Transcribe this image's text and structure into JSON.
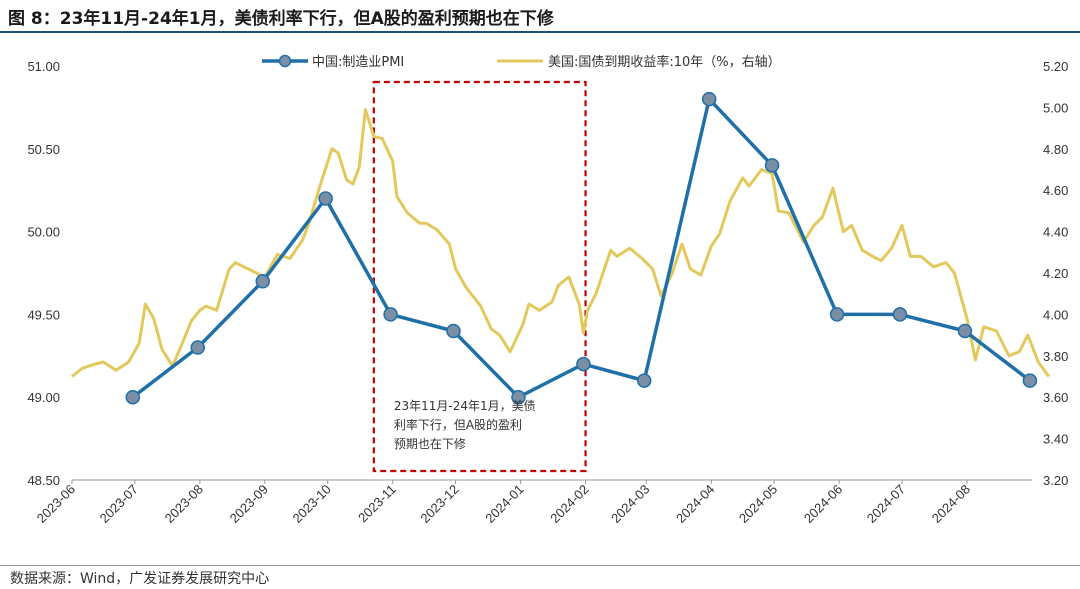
{
  "title": "图 8：23年11月-24年1月，美债利率下行，但A股的盈利预期也在下修",
  "source": "数据来源：Wind，广发证券发展研究中心",
  "colors": {
    "pmi": "#1f6fa8",
    "yield": "#e3c85c",
    "marker": "#7a8fa6",
    "box": "#c00000",
    "rule": "#1f4e79"
  },
  "chart_data": {
    "type": "line",
    "title": "图 8：23年11月-24年1月，美债利率下行，但A股的盈利预期也在下修",
    "x_labels": [
      "2023-06",
      "2023-07",
      "2023-08",
      "2023-09",
      "2023-10",
      "2023-11",
      "2023-12",
      "2024-01",
      "2024-02",
      "2024-03",
      "2024-04",
      "2024-05",
      "2024-06",
      "2024-07",
      "2024-08"
    ],
    "xlim": [
      "2023-06-01",
      "2024-09-01"
    ],
    "y_left": {
      "ylim": [
        48.5,
        51.0
      ],
      "ticks": [
        "48.50",
        "49.00",
        "49.50",
        "50.00",
        "50.50",
        "51.00"
      ]
    },
    "y_right": {
      "ylim": [
        3.2,
        5.2
      ],
      "ticks": [
        "3.20",
        "3.40",
        "3.60",
        "3.80",
        "4.00",
        "4.20",
        "4.40",
        "4.60",
        "4.80",
        "5.00",
        "5.20"
      ]
    },
    "legend_position": "top",
    "series": [
      {
        "name": "中国:制造业PMI",
        "axis": "left",
        "style": "line-with-markers",
        "x": [
          "2023-06-30",
          "2023-07-31",
          "2023-08-31",
          "2023-09-30",
          "2023-10-31",
          "2023-11-30",
          "2023-12-31",
          "2024-01-31",
          "2024-02-29",
          "2024-03-31",
          "2024-04-30",
          "2024-05-31",
          "2024-06-30",
          "2024-07-31",
          "2024-08-31"
        ],
        "y": [
          49.0,
          49.3,
          49.7,
          50.2,
          49.5,
          49.4,
          49.0,
          49.2,
          49.1,
          50.8,
          50.4,
          49.5,
          49.5,
          49.4,
          49.1
        ]
      },
      {
        "name": "美国:国债到期收益率:10年（%，右轴）",
        "axis": "right",
        "style": "line",
        "x": [
          "2023-06-01",
          "2023-06-06",
          "2023-06-12",
          "2023-06-16",
          "2023-06-22",
          "2023-06-28",
          "2023-07-03",
          "2023-07-06",
          "2023-07-10",
          "2023-07-14",
          "2023-07-19",
          "2023-07-24",
          "2023-07-28",
          "2023-08-01",
          "2023-08-04",
          "2023-08-09",
          "2023-08-15",
          "2023-08-18",
          "2023-08-24",
          "2023-08-28",
          "2023-09-01",
          "2023-09-07",
          "2023-09-13",
          "2023-09-19",
          "2023-09-22",
          "2023-09-27",
          "2023-10-03",
          "2023-10-06",
          "2023-10-10",
          "2023-10-13",
          "2023-10-16",
          "2023-10-19",
          "2023-10-23",
          "2023-10-27",
          "2023-11-01",
          "2023-11-03",
          "2023-11-08",
          "2023-11-14",
          "2023-11-17",
          "2023-11-22",
          "2023-11-28",
          "2023-12-01",
          "2023-12-06",
          "2023-12-13",
          "2023-12-18",
          "2023-12-22",
          "2023-12-27",
          "2024-01-02",
          "2024-01-05",
          "2024-01-10",
          "2024-01-16",
          "2024-01-19",
          "2024-01-24",
          "2024-01-29",
          "2024-01-31",
          "2024-02-02",
          "2024-02-06",
          "2024-02-13",
          "2024-02-16",
          "2024-02-22",
          "2024-02-28",
          "2024-03-04",
          "2024-03-08",
          "2024-03-13",
          "2024-03-18",
          "2024-03-22",
          "2024-03-27",
          "2024-04-01",
          "2024-04-05",
          "2024-04-10",
          "2024-04-16",
          "2024-04-19",
          "2024-04-25",
          "2024-04-30",
          "2024-05-03",
          "2024-05-08",
          "2024-05-15",
          "2024-05-20",
          "2024-05-24",
          "2024-05-29",
          "2024-06-03",
          "2024-06-07",
          "2024-06-12",
          "2024-06-17",
          "2024-06-21",
          "2024-06-26",
          "2024-07-01",
          "2024-07-05",
          "2024-07-10",
          "2024-07-16",
          "2024-07-22",
          "2024-07-26",
          "2024-08-01",
          "2024-08-05",
          "2024-08-09",
          "2024-08-15",
          "2024-08-21",
          "2024-08-26",
          "2024-08-30",
          "2024-09-04",
          "2024-09-09"
        ],
        "y": [
          3.7,
          3.74,
          3.76,
          3.77,
          3.73,
          3.77,
          3.86,
          4.05,
          3.98,
          3.83,
          3.75,
          3.87,
          3.97,
          4.02,
          4.04,
          4.02,
          4.22,
          4.25,
          4.22,
          4.2,
          4.18,
          4.29,
          4.27,
          4.36,
          4.44,
          4.61,
          4.8,
          4.78,
          4.65,
          4.63,
          4.71,
          4.99,
          4.86,
          4.85,
          4.74,
          4.57,
          4.49,
          4.44,
          4.44,
          4.41,
          4.34,
          4.22,
          4.13,
          4.04,
          3.93,
          3.9,
          3.82,
          3.95,
          4.05,
          4.02,
          4.06,
          4.14,
          4.18,
          4.05,
          3.91,
          4.02,
          4.1,
          4.31,
          4.28,
          4.32,
          4.27,
          4.22,
          4.09,
          4.19,
          4.34,
          4.22,
          4.19,
          4.33,
          4.39,
          4.55,
          4.66,
          4.62,
          4.7,
          4.68,
          4.5,
          4.49,
          4.35,
          4.43,
          4.47,
          4.61,
          4.4,
          4.43,
          4.31,
          4.28,
          4.26,
          4.32,
          4.43,
          4.28,
          4.28,
          4.23,
          4.25,
          4.2,
          3.98,
          3.78,
          3.94,
          3.92,
          3.8,
          3.82,
          3.9,
          3.77,
          3.7
        ]
      }
    ],
    "annotation": {
      "lines": [
        "23年11月-24年1月，美债",
        "利率下行，但A股的盈利",
        "预期也在下修"
      ],
      "box_x": [
        "2023-10-23",
        "2024-02-01"
      ],
      "box_style": "red dashed rectangle"
    }
  }
}
